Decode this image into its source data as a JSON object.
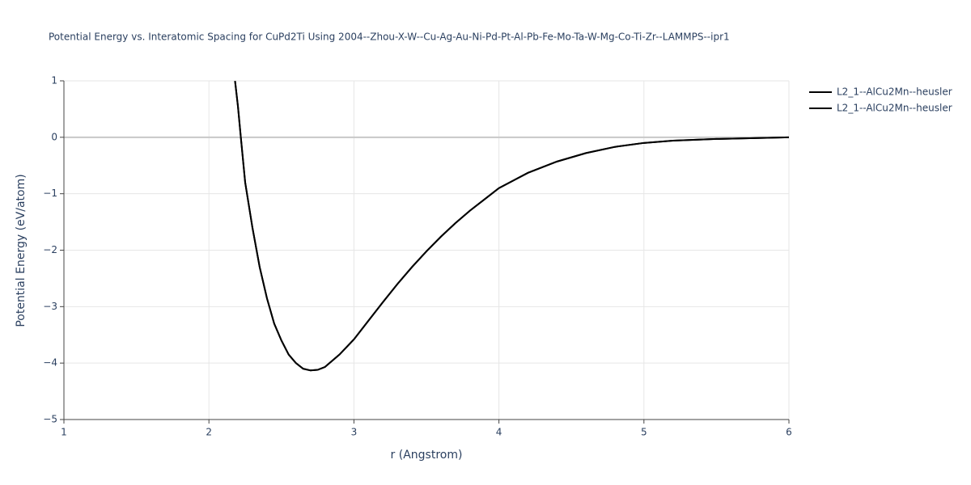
{
  "chart_data": {
    "type": "line",
    "title": "Potential Energy vs. Interatomic Spacing for CuPd2Ti Using 2004--Zhou-X-W--Cu-Ag-Au-Ni-Pd-Pt-Al-Pb-Fe-Mo-Ta-W-Mg-Co-Ti-Zr--LAMMPS--ipr1",
    "x_label": "r (Angstrom)",
    "y_label": "Potential Energy (eV/atom)",
    "xlim": [
      1,
      6
    ],
    "ylim": [
      -5,
      1
    ],
    "xticks": [
      1,
      2,
      3,
      4,
      5,
      6
    ],
    "yticks": [
      {
        "value": -5,
        "label": "−5"
      },
      {
        "value": -4,
        "label": "−4"
      },
      {
        "value": -3,
        "label": "−3"
      },
      {
        "value": -2,
        "label": "−2"
      },
      {
        "value": -1,
        "label": "−1"
      },
      0,
      1
    ],
    "grid": true,
    "legend": "top-right",
    "series": [
      {
        "name": "L2_1--AlCu2Mn--heusler",
        "color": "#000000",
        "x": [
          2.18,
          2.2,
          2.22,
          2.25,
          2.3,
          2.35,
          2.4,
          2.45,
          2.5,
          2.55,
          2.6,
          2.65,
          2.7,
          2.75,
          2.8,
          2.9,
          3.0,
          3.1,
          3.2,
          3.3,
          3.4,
          3.5,
          3.6,
          3.7,
          3.8,
          3.9,
          4.0,
          4.2,
          4.4,
          4.6,
          4.8,
          5.0,
          5.2,
          5.5,
          6.0
        ],
        "values": [
          1.0,
          0.55,
          0.0,
          -0.8,
          -1.6,
          -2.3,
          -2.85,
          -3.3,
          -3.6,
          -3.85,
          -4.0,
          -4.1,
          -4.13,
          -4.12,
          -4.07,
          -3.85,
          -3.58,
          -3.25,
          -2.92,
          -2.6,
          -2.3,
          -2.02,
          -1.76,
          -1.52,
          -1.3,
          -1.1,
          -0.9,
          -0.63,
          -0.43,
          -0.28,
          -0.17,
          -0.1,
          -0.06,
          -0.03,
          0.0
        ]
      },
      {
        "name": "L2_1--AlCu2Mn--heusler",
        "color": "#000000",
        "x": [
          2.18,
          2.2,
          2.22,
          2.25,
          2.3,
          2.35,
          2.4,
          2.45,
          2.5,
          2.55,
          2.6,
          2.65,
          2.7,
          2.75,
          2.8,
          2.9,
          3.0,
          3.1,
          3.2,
          3.3,
          3.4,
          3.5,
          3.6,
          3.7,
          3.8,
          3.9,
          4.0,
          4.2,
          4.4,
          4.6,
          4.8,
          5.0,
          5.2,
          5.5,
          6.0
        ],
        "values": [
          1.0,
          0.55,
          0.0,
          -0.8,
          -1.6,
          -2.3,
          -2.85,
          -3.3,
          -3.6,
          -3.85,
          -4.0,
          -4.1,
          -4.13,
          -4.12,
          -4.07,
          -3.85,
          -3.58,
          -3.25,
          -2.92,
          -2.6,
          -2.3,
          -2.02,
          -1.76,
          -1.52,
          -1.3,
          -1.1,
          -0.9,
          -0.63,
          -0.43,
          -0.28,
          -0.17,
          -0.1,
          -0.06,
          -0.03,
          0.0
        ]
      }
    ]
  }
}
